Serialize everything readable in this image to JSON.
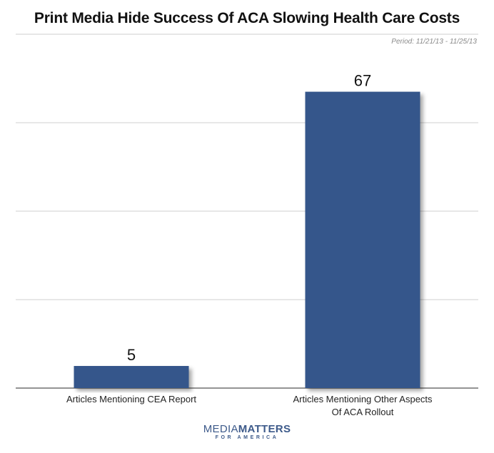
{
  "header": {
    "title": "Print Media Hide Success Of ACA Slowing Health Care Costs",
    "period": "Period: 11/21/13 - 11/25/13"
  },
  "logo": {
    "line1_part1": "MEDIA",
    "line1_part2": "MATTERS",
    "line2": "FOR AMERICA"
  },
  "chart_data": {
    "type": "bar",
    "title": "Print Media Hide Success Of ACA Slowing Health Care Costs",
    "subtitle": "Period: 11/21/13 - 11/25/13",
    "categories": [
      [
        "Articles Mentioning CEA Report"
      ],
      [
        "Articles Mentioning Other Aspects",
        "Of ACA Rollout"
      ]
    ],
    "values": [
      5,
      67
    ],
    "ylim": [
      0,
      80
    ],
    "grid": true,
    "bar_color": "#34568b",
    "xlabel": "",
    "ylabel": ""
  }
}
